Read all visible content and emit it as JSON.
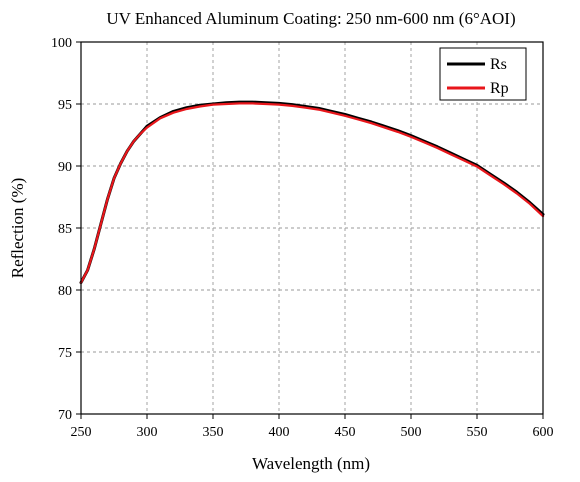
{
  "chart_data": {
    "type": "line",
    "title": "UV Enhanced Aluminum Coating: 250 nm-600 nm (6°AOI)",
    "xlabel": "Wavelength (nm)",
    "ylabel": "Reflection (%)",
    "xlim": [
      250,
      600
    ],
    "ylim": [
      70,
      100
    ],
    "xticks": [
      250,
      300,
      350,
      400,
      450,
      500,
      550,
      600
    ],
    "yticks": [
      70,
      75,
      80,
      85,
      90,
      95,
      100
    ],
    "grid": true,
    "legend_position": "top-right",
    "series": [
      {
        "name": "Rs",
        "color": "#000000",
        "x": [
          250,
          255,
          260,
          265,
          270,
          275,
          280,
          285,
          290,
          295,
          300,
          310,
          320,
          330,
          340,
          350,
          360,
          370,
          380,
          390,
          400,
          410,
          420,
          430,
          440,
          450,
          460,
          470,
          480,
          490,
          500,
          510,
          520,
          530,
          540,
          550,
          560,
          570,
          580,
          590,
          600
        ],
        "y": [
          80.6,
          81.6,
          83.3,
          85.3,
          87.3,
          89.0,
          90.2,
          91.2,
          92.0,
          92.6,
          93.2,
          93.9,
          94.4,
          94.7,
          94.9,
          95.0,
          95.1,
          95.15,
          95.15,
          95.1,
          95.05,
          94.95,
          94.8,
          94.65,
          94.4,
          94.15,
          93.85,
          93.55,
          93.2,
          92.85,
          92.45,
          92.0,
          91.55,
          91.05,
          90.55,
          90.05,
          89.35,
          88.65,
          87.9,
          87.05,
          86.1
        ]
      },
      {
        "name": "Rp",
        "color": "#e8161b",
        "x": [
          250,
          255,
          260,
          265,
          270,
          275,
          280,
          285,
          290,
          295,
          300,
          310,
          320,
          330,
          340,
          350,
          360,
          370,
          380,
          390,
          400,
          410,
          420,
          430,
          440,
          450,
          460,
          470,
          480,
          490,
          500,
          510,
          520,
          530,
          540,
          550,
          560,
          570,
          580,
          590,
          600
        ],
        "y": [
          80.6,
          81.6,
          83.3,
          85.3,
          87.3,
          89.0,
          90.2,
          91.2,
          92.0,
          92.6,
          93.1,
          93.85,
          94.3,
          94.6,
          94.8,
          94.95,
          95.0,
          95.05,
          95.05,
          95.0,
          94.95,
          94.85,
          94.7,
          94.55,
          94.3,
          94.05,
          93.75,
          93.45,
          93.1,
          92.75,
          92.35,
          91.9,
          91.45,
          90.95,
          90.45,
          89.95,
          89.25,
          88.55,
          87.8,
          86.95,
          85.95
        ]
      }
    ]
  }
}
